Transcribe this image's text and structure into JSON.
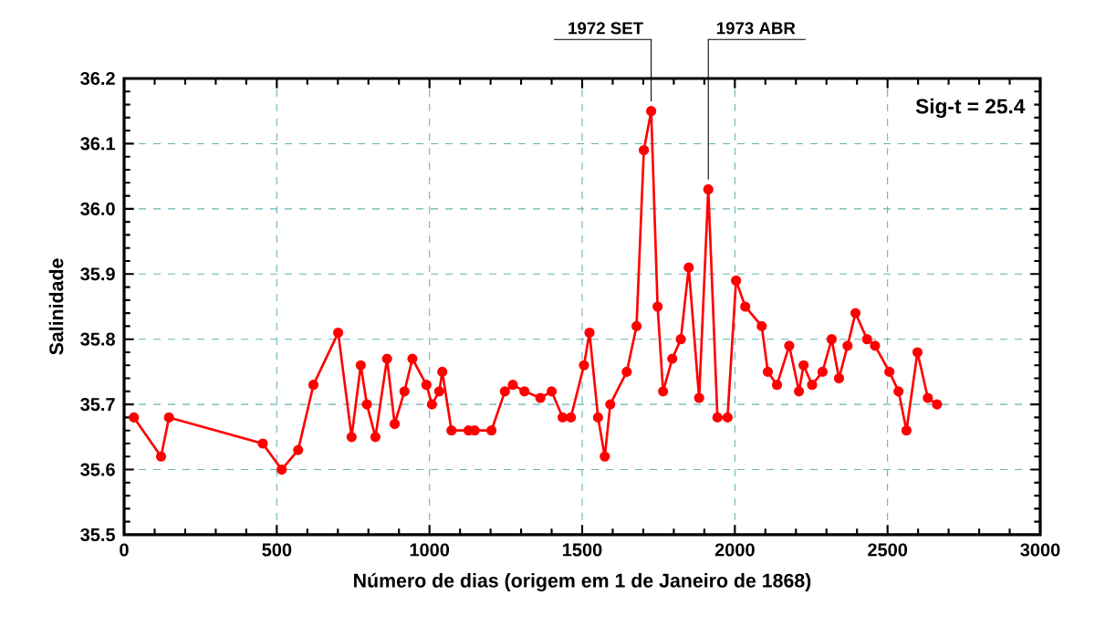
{
  "chart_data": {
    "type": "line",
    "xlabel": "Número de dias (origem em 1 de Janeiro de 1868)",
    "ylabel": "Salinidade",
    "x": [
      32,
      121,
      147,
      454,
      516,
      570,
      620,
      701,
      745,
      775,
      795,
      823,
      861,
      886,
      918,
      944,
      990,
      1008,
      1032,
      1042,
      1072,
      1128,
      1148,
      1203,
      1247,
      1273,
      1311,
      1363,
      1400,
      1436,
      1463,
      1506,
      1524,
      1552,
      1574,
      1592,
      1646,
      1678,
      1702,
      1726,
      1747,
      1765,
      1795,
      1823,
      1849,
      1883,
      1913,
      1943,
      1976,
      2004,
      2034,
      2088,
      2108,
      2138,
      2178,
      2210,
      2225,
      2253,
      2287,
      2317,
      2341,
      2369,
      2395,
      2433,
      2459,
      2506,
      2536,
      2562,
      2598,
      2632,
      2662
    ],
    "series": [
      {
        "color": "#ff0000",
        "values": [
          35.68,
          35.62,
          35.68,
          35.64,
          35.6,
          35.63,
          35.73,
          35.81,
          35.65,
          35.76,
          35.7,
          35.65,
          35.77,
          35.67,
          35.72,
          35.77,
          35.73,
          35.7,
          35.72,
          35.75,
          35.66,
          35.66,
          35.66,
          35.66,
          35.72,
          35.73,
          35.72,
          35.71,
          35.72,
          35.68,
          35.68,
          35.76,
          35.81,
          35.68,
          35.62,
          35.7,
          35.75,
          35.82,
          36.09,
          36.15,
          35.85,
          35.72,
          35.77,
          35.8,
          35.91,
          35.71,
          36.03,
          35.68,
          35.68,
          35.89,
          35.85,
          35.82,
          35.75,
          35.73,
          35.79,
          35.72,
          35.76,
          35.73,
          35.75,
          35.8,
          35.74,
          35.79,
          35.84,
          35.8,
          35.79,
          35.75,
          35.72,
          35.66,
          35.78,
          35.71,
          35.7
        ]
      }
    ],
    "xlim": [
      0,
      3000
    ],
    "xticks": [
      0,
      500,
      1000,
      1500,
      2000,
      2500,
      3000
    ],
    "ylim": [
      35.5,
      36.2
    ],
    "yticks": [
      35.5,
      35.6,
      35.7,
      35.8,
      35.9,
      {
        "value": 36,
        "label": "36.0"
      },
      36.1,
      36.2
    ],
    "grid": true,
    "marker": "circle",
    "line_style": "solid",
    "annotations": [
      "Sig-t = 25.4",
      {
        "text": "1972 SET",
        "x": 1726,
        "y": 36.15
      },
      {
        "text": "1973 ABR",
        "x": 1913,
        "y": 36.03
      }
    ]
  }
}
